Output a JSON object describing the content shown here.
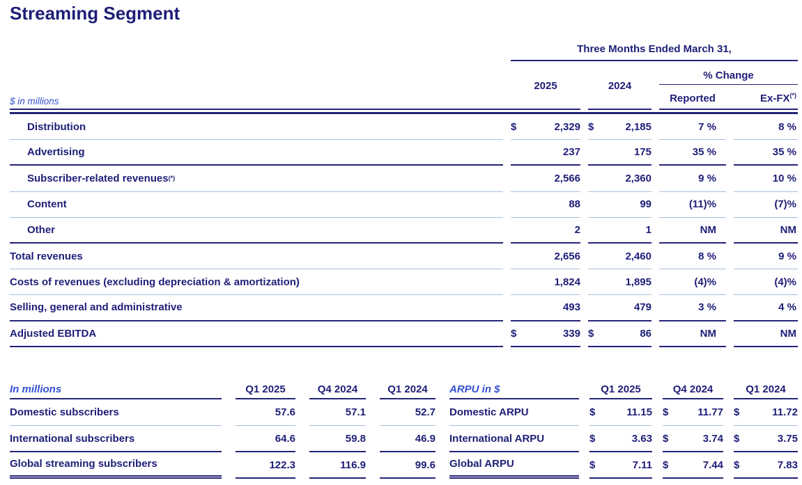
{
  "colors": {
    "navy": "#1e1e78",
    "line_navy": "#232378",
    "note_blue": "#3550d4",
    "light_sep": "#a6bedb"
  },
  "title": "Streaming Segment",
  "main": {
    "note": "$ in millions",
    "period_header": "Three Months Ended March 31,",
    "col_2025": "2025",
    "col_2024": "2024",
    "pct_change_header": "% Change",
    "reported_header": "Reported",
    "exfx_header": "Ex-FX",
    "exfx_sup": "(*)",
    "rows": [
      {
        "label": "Distribution",
        "cur_2025": "$",
        "v_2025": "2,329",
        "cur_2024": "$",
        "v_2024": "2,185",
        "reported": "7 %",
        "exfx": "8 %"
      },
      {
        "label": "Advertising",
        "v_2025": "237",
        "v_2024": "175",
        "reported": "35 %",
        "exfx": "35 %"
      },
      {
        "label": "Subscriber-related revenues",
        "sup": "(*)",
        "v_2025": "2,566",
        "v_2024": "2,360",
        "reported": "9 %",
        "exfx": "10 %"
      },
      {
        "label": "Content",
        "v_2025": "88",
        "v_2024": "99",
        "reported": "(11)%",
        "exfx": "(7)%"
      },
      {
        "label": "Other",
        "v_2025": "2",
        "v_2024": "1",
        "reported": "NM",
        "exfx": "NM"
      },
      {
        "label": "Total revenues",
        "v_2025": "2,656",
        "v_2024": "2,460",
        "reported": "8 %",
        "exfx": "9 %"
      },
      {
        "label": "Costs of revenues (excluding depreciation & amortization)",
        "v_2025": "1,824",
        "v_2024": "1,895",
        "reported": "(4)%",
        "exfx": "(4)%"
      },
      {
        "label": "Selling, general and administrative",
        "v_2025": "493",
        "v_2024": "479",
        "reported": "3 %",
        "exfx": "4 %"
      },
      {
        "label": "Adjusted EBITDA",
        "cur_2025": "$",
        "v_2025": "339",
        "cur_2024": "$",
        "v_2024": "86",
        "reported": "NM",
        "exfx": "NM"
      }
    ]
  },
  "subscribers": {
    "note": "In millions",
    "headers": [
      "Q1 2025",
      "Q4 2024",
      "Q1 2024"
    ],
    "rows": [
      {
        "label": "Domestic subscribers",
        "q1_2025": "57.6",
        "q4_2024": "57.1",
        "q1_2024": "52.7"
      },
      {
        "label": "International subscribers",
        "q1_2025": "64.6",
        "q4_2024": "59.8",
        "q1_2024": "46.9"
      },
      {
        "label": "Global streaming subscribers",
        "q1_2025": "122.3",
        "q4_2024": "116.9",
        "q1_2024": "99.6"
      }
    ]
  },
  "arpu": {
    "note": "ARPU in $",
    "currency": "$",
    "headers": [
      "Q1 2025",
      "Q4 2024",
      "Q1 2024"
    ],
    "rows": [
      {
        "label": "Domestic ARPU",
        "q1_2025": "11.15",
        "q4_2024": "11.77",
        "q1_2024": "11.72"
      },
      {
        "label": "International ARPU",
        "q1_2025": "3.63",
        "q4_2024": "3.74",
        "q1_2024": "3.75"
      },
      {
        "label": "Global ARPU",
        "q1_2025": "7.11",
        "q4_2024": "7.44",
        "q1_2024": "7.83"
      }
    ]
  }
}
